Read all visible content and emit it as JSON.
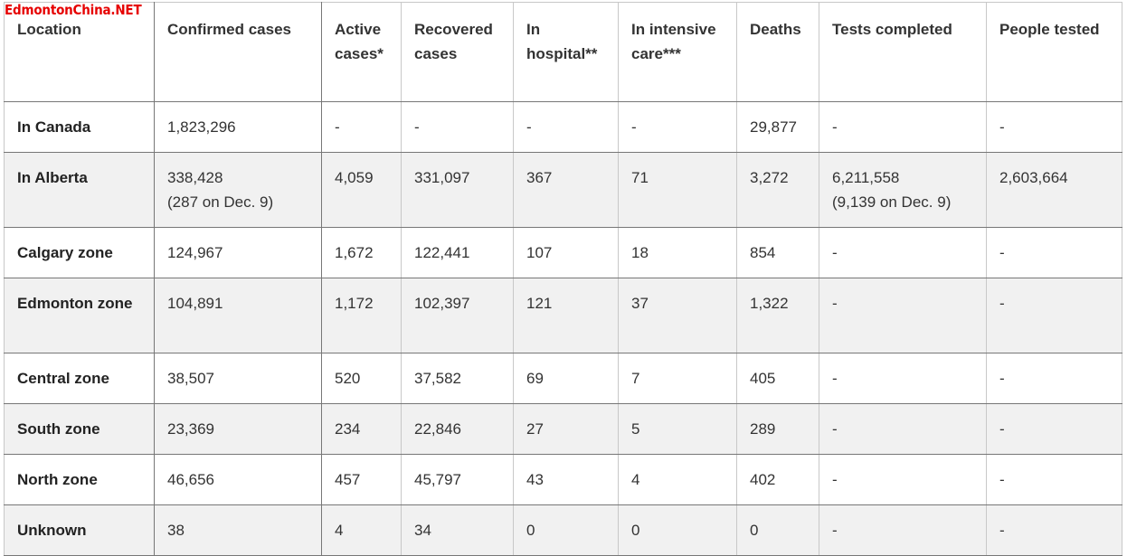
{
  "watermark": "EdmontonChina.NET",
  "table": {
    "headers": [
      "Location",
      "Confirmed cases",
      "Active cases*",
      "Recovered cases",
      "In hospital**",
      "In intensive care***",
      "Deaths",
      "Tests completed",
      "People tested"
    ],
    "rows": [
      {
        "location": "In Canada",
        "confirmed": "1,823,296",
        "confirmed_note": "",
        "active": "-",
        "recovered": "-",
        "hospital": "-",
        "icu": "-",
        "deaths": "29,877",
        "tests": "-",
        "tests_note": "",
        "tested": "-"
      },
      {
        "location": "In Alberta",
        "confirmed": "338,428",
        "confirmed_note": "(287 on Dec. 9)",
        "active": "4,059",
        "recovered": "331,097",
        "hospital": "367",
        "icu": "71",
        "deaths": "3,272",
        "tests": "6,211,558",
        "tests_note": "(9,139 on Dec. 9)",
        "tested": "2,603,664"
      },
      {
        "location": "Calgary zone",
        "confirmed": "124,967",
        "confirmed_note": "",
        "active": "1,672",
        "recovered": "122,441",
        "hospital": "107",
        "icu": "18",
        "deaths": "854",
        "tests": "-",
        "tests_note": "",
        "tested": "-"
      },
      {
        "location": "Edmonton zone",
        "confirmed": "104,891",
        "confirmed_note": "",
        "active": "1,172",
        "recovered": "102,397",
        "hospital": "121",
        "icu": "37",
        "deaths": "1,322",
        "tests": "-",
        "tests_note": "",
        "tested": "-"
      },
      {
        "location": "Central zone",
        "confirmed": "38,507",
        "confirmed_note": "",
        "active": "520",
        "recovered": "37,582",
        "hospital": "69",
        "icu": "7",
        "deaths": "405",
        "tests": "-",
        "tests_note": "",
        "tested": "-"
      },
      {
        "location": "South zone",
        "confirmed": "23,369",
        "confirmed_note": "",
        "active": "234",
        "recovered": "22,846",
        "hospital": "27",
        "icu": "5",
        "deaths": "289",
        "tests": "-",
        "tests_note": "",
        "tested": "-"
      },
      {
        "location": "North zone",
        "confirmed": "46,656",
        "confirmed_note": "",
        "active": "457",
        "recovered": "45,797",
        "hospital": "43",
        "icu": "4",
        "deaths": "402",
        "tests": "-",
        "tests_note": "",
        "tested": "-"
      },
      {
        "location": "Unknown",
        "confirmed": "38",
        "confirmed_note": "",
        "active": "4",
        "recovered": "34",
        "hospital": "0",
        "icu": "0",
        "deaths": "0",
        "tests": "-",
        "tests_note": "",
        "tested": "-"
      }
    ]
  }
}
